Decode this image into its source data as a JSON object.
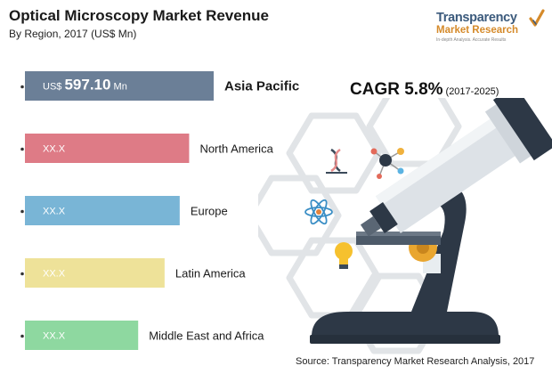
{
  "chart_data": {
    "type": "bar",
    "orientation": "horizontal",
    "title": "Optical Microscopy Market Revenue",
    "subtitle": "By Region, 2017 (US$ Mn)",
    "categories": [
      "Asia Pacific",
      "North America",
      "Europe",
      "Latin America",
      "Middle East and Africa"
    ],
    "values": [
      597.1,
      null,
      null,
      null,
      null
    ],
    "value_labels": [
      {
        "prefix": "US$",
        "value": "597.10",
        "suffix": "Mn"
      },
      {
        "prefix": "",
        "value": "XX.X",
        "suffix": ""
      },
      {
        "prefix": "",
        "value": "XX.X",
        "suffix": ""
      },
      {
        "prefix": "",
        "value": "XX.X",
        "suffix": ""
      },
      {
        "prefix": "",
        "value": "XX.X",
        "suffix": ""
      }
    ],
    "relative_lengths": [
      1.0,
      0.87,
      0.82,
      0.74,
      0.6
    ],
    "colors": [
      "#6b7f97",
      "#de7b86",
      "#79b5d6",
      "#eee299",
      "#8ed8a0"
    ],
    "legend": "none",
    "grid": false
  },
  "cagr": {
    "label": "CAGR 5.8%",
    "period": "(2017-2025)"
  },
  "logo": {
    "name": "Transparency",
    "sub": "Market Research",
    "tagline": "In-depth Analysis. Accurate Results"
  },
  "source": "Source: Transparency Market Research Analysis, 2017"
}
